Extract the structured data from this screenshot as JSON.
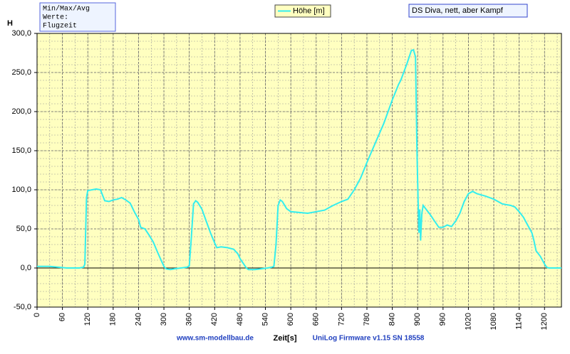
{
  "chart_data": {
    "type": "line",
    "info_box": [
      "Min/Max/Avg",
      "Werte:",
      "Flugzeit"
    ],
    "title": "DS Diva, nett, aber Kampf",
    "ylabel": "H",
    "xlabel": "Zeit[s]",
    "footer_left": "www.sm-modellbau.de",
    "footer_right": "UniLog Firmware v1.15 SN 18558",
    "grid": true,
    "background": "#ffffc0",
    "xlim": [
      0,
      1240
    ],
    "ylim": [
      -50,
      300
    ],
    "xticks": [
      0,
      60,
      120,
      180,
      240,
      300,
      360,
      420,
      480,
      540,
      600,
      660,
      720,
      780,
      840,
      900,
      960,
      1020,
      1080,
      1140,
      1200
    ],
    "yticks": [
      {
        "value": -50,
        "label": "-50,0"
      },
      {
        "value": 0,
        "label": "0,0"
      },
      {
        "value": 50,
        "label": "50,0"
      },
      {
        "value": 100,
        "label": "100,0"
      },
      {
        "value": 150,
        "label": "150,0"
      },
      {
        "value": 200,
        "label": "200,0"
      },
      {
        "value": 250,
        "label": "250,0"
      },
      {
        "value": 300,
        "label": "300,0"
      }
    ],
    "series": [
      {
        "name": "Höhe [m]",
        "color": "#33eeee",
        "x": [
          0,
          30,
          50,
          70,
          100,
          110,
          113,
          117,
          120,
          130,
          140,
          150,
          155,
          160,
          170,
          180,
          190,
          200,
          210,
          220,
          230,
          240,
          245,
          255,
          265,
          275,
          285,
          295,
          300,
          305,
          315,
          325,
          340,
          355,
          360,
          365,
          370,
          375,
          380,
          390,
          400,
          410,
          420,
          425,
          435,
          450,
          465,
          475,
          480,
          490,
          495,
          500,
          515,
          530,
          545,
          555,
          560,
          565,
          570,
          575,
          580,
          590,
          600,
          620,
          640,
          660,
          680,
          700,
          720,
          735,
          750,
          765,
          780,
          800,
          820,
          840,
          855,
          860,
          875,
          885,
          890,
          895,
          898,
          901,
          903,
          905,
          907,
          910,
          913,
          920,
          930,
          940,
          950,
          960,
          970,
          980,
          990,
          1000,
          1010,
          1020,
          1030,
          1040,
          1060,
          1080,
          1100,
          1120,
          1130,
          1140,
          1150,
          1160,
          1170,
          1175,
          1180,
          1190,
          1200,
          1205,
          1210,
          1230,
          1240
        ],
        "values": [
          2,
          2,
          1,
          0,
          0,
          1,
          5,
          90,
          99,
          100,
          101,
          100,
          93,
          86,
          85,
          87,
          88,
          90,
          87,
          83,
          72,
          62,
          52,
          50,
          42,
          33,
          20,
          8,
          2,
          -1,
          -2,
          -1,
          0,
          1,
          3,
          40,
          82,
          86,
          84,
          75,
          60,
          45,
          32,
          26,
          27,
          26,
          24,
          18,
          12,
          4,
          0,
          -2,
          -2,
          -1,
          0,
          1,
          2,
          30,
          80,
          87,
          85,
          76,
          72,
          71,
          70,
          72,
          74,
          80,
          85,
          88,
          100,
          115,
          135,
          160,
          185,
          215,
          235,
          240,
          262,
          278,
          279,
          270,
          160,
          85,
          45,
          75,
          35,
          70,
          80,
          75,
          68,
          60,
          52,
          52,
          55,
          53,
          60,
          70,
          85,
          95,
          98,
          95,
          92,
          88,
          82,
          80,
          78,
          72,
          65,
          55,
          45,
          35,
          22,
          15,
          5,
          1,
          0,
          0,
          0
        ]
      }
    ]
  }
}
